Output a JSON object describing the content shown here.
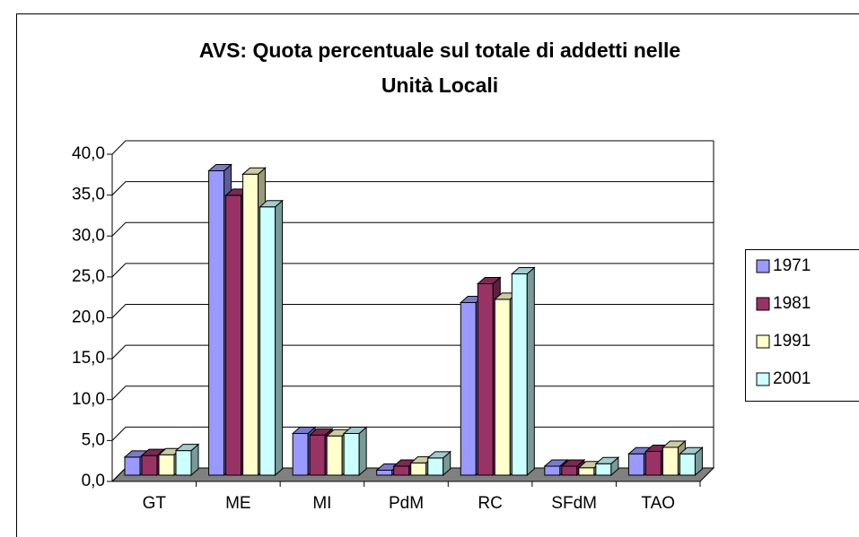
{
  "chart_data": {
    "type": "bar3d",
    "title": [
      "AVS: Quota percentuale sul totale di addetti nelle",
      "Unità Locali"
    ],
    "categories": [
      "GT",
      "ME",
      "MI",
      "PdM",
      "RC",
      "SFdM",
      "TAO"
    ],
    "series": [
      {
        "name": "1971",
        "color": "#9999ff",
        "values": [
          2.2,
          37.2,
          5.1,
          0.6,
          21.1,
          1.1,
          2.6
        ]
      },
      {
        "name": "1981",
        "color": "#993366",
        "values": [
          2.4,
          34.2,
          4.9,
          1.1,
          23.4,
          1.1,
          2.9
        ]
      },
      {
        "name": "1991",
        "color": "#ffffcc",
        "values": [
          2.5,
          36.8,
          4.8,
          1.5,
          21.5,
          0.9,
          3.4
        ]
      },
      {
        "name": "2001",
        "color": "#ccffff",
        "values": [
          3.0,
          32.8,
          5.1,
          2.1,
          24.6,
          1.4,
          2.6
        ]
      }
    ],
    "ylim": [
      0,
      40
    ],
    "yticks": [
      {
        "value": 0,
        "label": "0,0"
      },
      {
        "value": 5,
        "label": "5,0"
      },
      {
        "value": 10,
        "label": "10,0"
      },
      {
        "value": 15,
        "label": "15,0"
      },
      {
        "value": 20,
        "label": "20,0"
      },
      {
        "value": 25,
        "label": "25,0"
      },
      {
        "value": 30,
        "label": "30,0"
      },
      {
        "value": 35,
        "label": "35,0"
      },
      {
        "value": 40,
        "label": "40,0"
      }
    ],
    "grid": true,
    "legend": "right"
  }
}
